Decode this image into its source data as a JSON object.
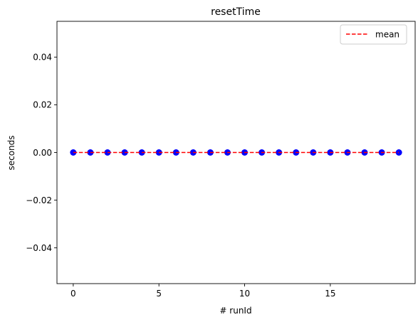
{
  "chart_data": {
    "type": "scatter",
    "title": "resetTime",
    "xlabel": "# runId",
    "ylabel": "seconds",
    "xlim": [
      -0.95,
      19.95
    ],
    "ylim": [
      -0.055,
      0.055
    ],
    "xticks": [
      0,
      5,
      10,
      15
    ],
    "xtick_labels": [
      "0",
      "5",
      "10",
      "15"
    ],
    "yticks": [
      -0.04,
      -0.02,
      0.0,
      0.02,
      0.04
    ],
    "ytick_labels": [
      "−0.04",
      "−0.02",
      "0.00",
      "0.02",
      "0.04"
    ],
    "grid": false,
    "legend_position": "top-right",
    "series": [
      {
        "kind": "scatter",
        "color": "#0000ff",
        "x": [
          0,
          1,
          2,
          3,
          4,
          5,
          6,
          7,
          8,
          9,
          10,
          11,
          12,
          13,
          14,
          15,
          16,
          17,
          18,
          19
        ],
        "y": [
          0,
          0,
          0,
          0,
          0,
          0,
          0,
          0,
          0,
          0,
          0,
          0,
          0,
          0,
          0,
          0,
          0,
          0,
          0,
          0
        ]
      },
      {
        "kind": "line",
        "name": "mean",
        "style": "dashed",
        "color": "#ff0000",
        "x": [
          0,
          19
        ],
        "y": [
          0,
          0
        ]
      }
    ]
  }
}
